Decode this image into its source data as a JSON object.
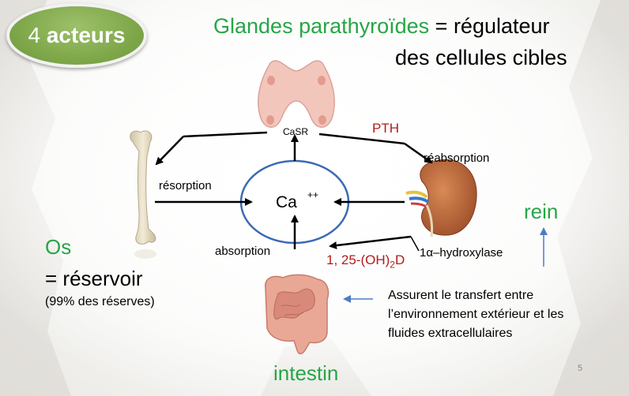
{
  "badge": {
    "number": "4",
    "word": "acteurs"
  },
  "title": {
    "green_part": "Glandes parathyroïdes",
    "rest_line1": " = régulateur",
    "line2": "des cellules cibles"
  },
  "labels": {
    "casr": "CaSR",
    "pth": "PTH",
    "reabsorption": "réabsorption",
    "resorption": "résorption",
    "ca": "Ca",
    "ca_charge": "++",
    "absorption": "absorption",
    "vitd_main": "1, 25-(OH)",
    "vitd_sub": "2",
    "vitd_end": "D",
    "hydroxylase": "1α–hydroxylase"
  },
  "os": {
    "title": "Os",
    "subtitle": "= réservoir",
    "note": "(99% des réserves)"
  },
  "rein": "rein",
  "intestin": "intestin",
  "transfer_text": {
    "line1": "Assurent le transfert entre",
    "line2": "l’environnement extérieur et les",
    "line3": "fluides extracellulaires"
  },
  "page_number": "5",
  "colors": {
    "green_accent": "#27a546",
    "hormone_red": "#b01c1c",
    "circle_blue": "#3b6bb3",
    "badge_green": "#7fa84a"
  },
  "icons": [
    "thyroid-icon",
    "bone-icon",
    "kidney-icon",
    "intestine-icon"
  ]
}
